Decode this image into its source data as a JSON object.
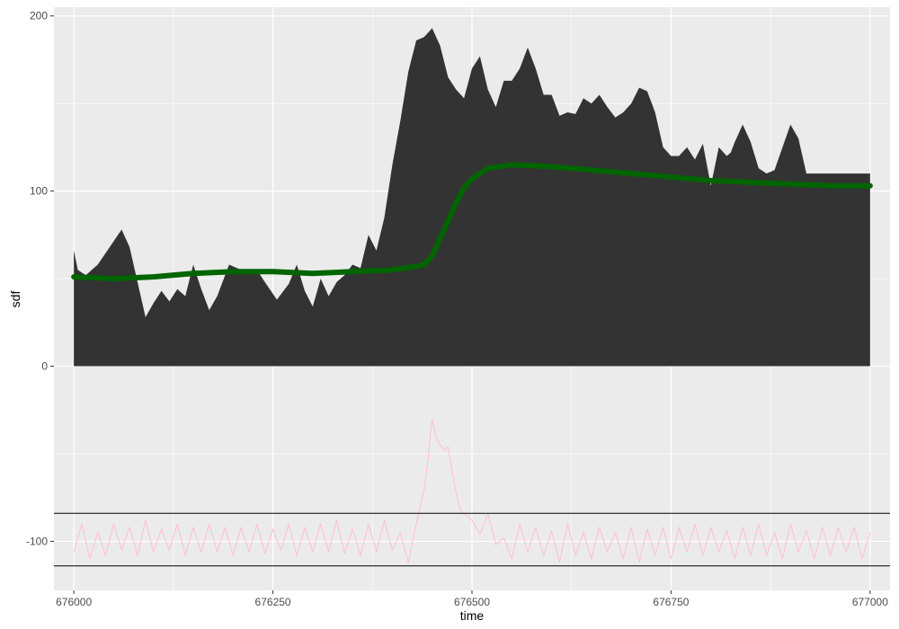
{
  "chart_data": {
    "type": "area",
    "title": "",
    "xlabel": "time",
    "ylabel": "sdf",
    "xlim": [
      675975,
      677025
    ],
    "ylim": [
      -128,
      205
    ],
    "x_ticks": [
      676000,
      676250,
      676500,
      676750,
      677000
    ],
    "x_tick_labels": [
      "676000",
      "676250",
      "676500",
      "676750",
      "677000"
    ],
    "y_ticks": [
      0,
      100,
      200
    ],
    "y_tick_labels": [
      "0",
      "100",
      "200"
    ],
    "grid": true,
    "panel_background": "#ebebeb",
    "legend": "none",
    "hlines": [
      -84,
      -114
    ],
    "series": [
      {
        "kind": "area",
        "color": "#333333",
        "x": [
          676000,
          676005,
          676015,
          676030,
          676045,
          676060,
          676070,
          676080,
          676090,
          676100,
          676110,
          676120,
          676130,
          676140,
          676150,
          676160,
          676170,
          676180,
          676195,
          676210,
          676220,
          676230,
          676240,
          676255,
          676270,
          676280,
          676290,
          676300,
          676310,
          676320,
          676330,
          676340,
          676350,
          676360,
          676370,
          676380,
          676390,
          676400,
          676410,
          676420,
          676430,
          676440,
          676450,
          676460,
          676470,
          676480,
          676490,
          676500,
          676510,
          676520,
          676530,
          676540,
          676550,
          676560,
          676570,
          676580,
          676590,
          676600,
          676610,
          676620,
          676630,
          676640,
          676650,
          676660,
          676670,
          676680,
          676690,
          676700,
          676710,
          676720,
          676730,
          676740,
          676750,
          676760,
          676770,
          676780,
          676790,
          676800,
          676810,
          676820,
          676825,
          676830,
          676840,
          676850,
          676860,
          676870,
          676880,
          676890,
          676900,
          676910,
          676920,
          676930,
          676940,
          676950,
          676960,
          676970,
          676980,
          676990,
          677000
        ],
        "y": [
          66,
          55,
          52,
          58,
          68,
          78,
          68,
          48,
          28,
          36,
          43,
          37,
          44,
          40,
          58,
          44,
          32,
          40,
          58,
          55,
          55,
          55,
          48,
          38,
          47,
          58,
          43,
          34,
          50,
          40,
          48,
          52,
          58,
          56,
          75,
          66,
          85,
          115,
          140,
          168,
          186,
          188,
          193,
          183,
          165,
          158,
          153,
          170,
          177,
          158,
          148,
          163,
          163,
          170,
          182,
          170,
          155,
          155,
          143,
          145,
          144,
          153,
          150,
          155,
          148,
          142,
          145,
          150,
          159,
          157,
          145,
          125,
          120,
          120,
          125,
          118,
          127,
          103,
          125,
          120,
          122,
          128,
          138,
          128,
          113,
          110,
          112,
          125,
          138,
          130,
          110,
          110,
          110,
          110,
          110,
          110,
          110,
          110,
          110
        ],
        "y_detail": [],
        "upper": []
      },
      {
        "kind": "line",
        "color": "#006400",
        "x": [
          676000,
          676050,
          676100,
          676150,
          676200,
          676250,
          676300,
          676350,
          676400,
          676430,
          676440,
          676450,
          676460,
          676470,
          676480,
          676490,
          676500,
          676520,
          676550,
          676600,
          676650,
          676700,
          676750,
          676800,
          676850,
          676900,
          676950,
          677000
        ],
        "y": [
          51,
          50,
          51,
          53,
          54,
          54,
          53,
          54,
          55,
          57,
          58,
          63,
          73,
          83,
          93,
          102,
          107,
          113,
          115,
          114,
          112,
          110,
          108,
          106,
          105,
          104,
          103,
          103
        ]
      },
      {
        "kind": "line",
        "color": "#ffc0cb",
        "x": [
          676000,
          676010,
          676020,
          676030,
          676040,
          676050,
          676060,
          676070,
          676080,
          676090,
          676100,
          676110,
          676120,
          676130,
          676140,
          676150,
          676160,
          676170,
          676180,
          676190,
          676200,
          676210,
          676220,
          676230,
          676240,
          676250,
          676260,
          676270,
          676280,
          676290,
          676300,
          676310,
          676320,
          676330,
          676340,
          676350,
          676360,
          676370,
          676380,
          676390,
          676400,
          676410,
          676420,
          676430,
          676440,
          676445,
          676450,
          676455,
          676460,
          676465,
          676470,
          676475,
          676480,
          676485,
          676490,
          676500,
          676510,
          676520,
          676530,
          676540,
          676550,
          676560,
          676570,
          676580,
          676590,
          676600,
          676610,
          676620,
          676630,
          676640,
          676650,
          676660,
          676670,
          676680,
          676690,
          676700,
          676710,
          676720,
          676730,
          676740,
          676750,
          676760,
          676770,
          676780,
          676790,
          676800,
          676810,
          676820,
          676830,
          676840,
          676850,
          676860,
          676870,
          676880,
          676890,
          676900,
          676910,
          676920,
          676930,
          676940,
          676950,
          676960,
          676970,
          676980,
          676990,
          677000
        ],
        "y": [
          -106,
          -90,
          -110,
          -95,
          -108,
          -90,
          -105,
          -92,
          -108,
          -88,
          -106,
          -93,
          -105,
          -90,
          -108,
          -92,
          -106,
          -90,
          -106,
          -92,
          -108,
          -92,
          -106,
          -90,
          -107,
          -93,
          -105,
          -90,
          -108,
          -92,
          -106,
          -90,
          -106,
          -88,
          -107,
          -93,
          -108,
          -90,
          -106,
          -88,
          -105,
          -95,
          -112,
          -90,
          -70,
          -52,
          -30,
          -40,
          -45,
          -48,
          -46,
          -60,
          -72,
          -82,
          -84,
          -88,
          -96,
          -84,
          -102,
          -98,
          -110,
          -90,
          -106,
          -92,
          -108,
          -94,
          -112,
          -90,
          -108,
          -95,
          -110,
          -92,
          -106,
          -95,
          -110,
          -92,
          -112,
          -93,
          -108,
          -92,
          -110,
          -92,
          -106,
          -90,
          -108,
          -92,
          -106,
          -94,
          -110,
          -92,
          -108,
          -90,
          -108,
          -95,
          -110,
          -90,
          -106,
          -94,
          -110,
          -92,
          -108,
          -92,
          -106,
          -92,
          -110,
          -95
        ]
      }
    ]
  }
}
